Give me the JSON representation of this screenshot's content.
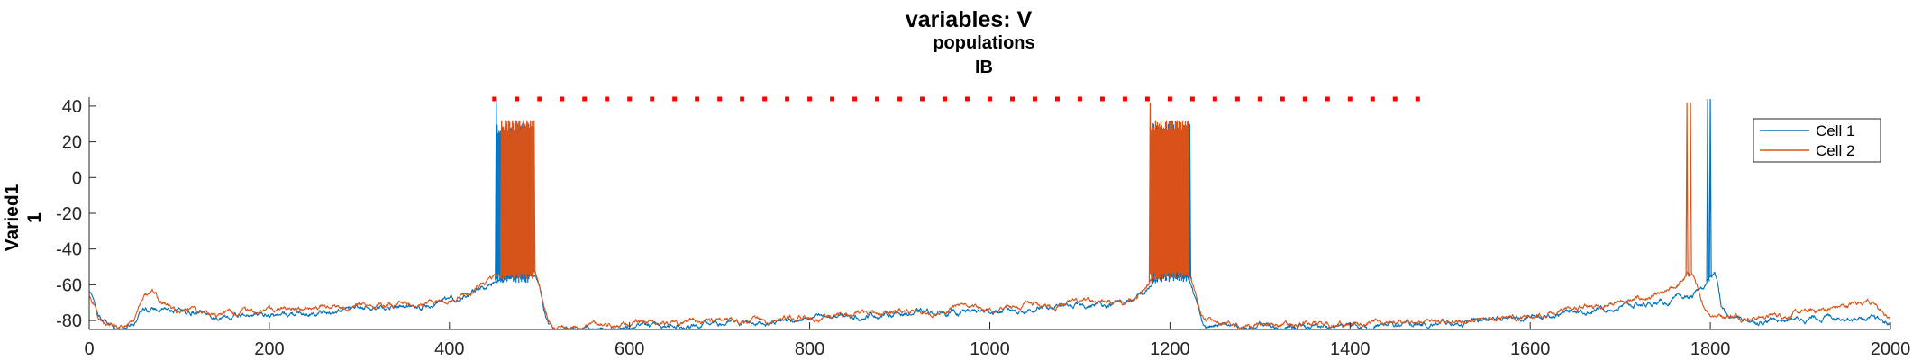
{
  "chart_data": {
    "type": "line",
    "title": "variables: V",
    "subtitle_line1": "populations",
    "subtitle_line2": "IB",
    "ylabel_line1": "Varied1",
    "ylabel_line2": "1",
    "xlabel": "",
    "xlim": [
      0,
      2000
    ],
    "ylim": [
      -85,
      45
    ],
    "xticks": [
      0,
      200,
      400,
      600,
      800,
      1000,
      1200,
      1400,
      1600,
      1800,
      2000
    ],
    "yticks": [
      -80,
      -60,
      -40,
      -20,
      0,
      20,
      40
    ],
    "grid": false,
    "legend_position": "top-right",
    "colors": {
      "cell1": "#0072BD",
      "cell2": "#D95319",
      "stim_marker": "#FF0000",
      "axis": "#262626"
    },
    "stimulus_marker": {
      "y": 44,
      "x_start": 450,
      "x_end": 1485,
      "spacing": 25
    },
    "series": [
      {
        "name": "Cell 1",
        "points": [
          [
            0,
            -64
          ],
          [
            5,
            -68
          ],
          [
            10,
            -78
          ],
          [
            20,
            -82
          ],
          [
            30,
            -84
          ],
          [
            40,
            -84
          ],
          [
            50,
            -81
          ],
          [
            55,
            -76
          ],
          [
            60,
            -72
          ],
          [
            80,
            -74
          ],
          [
            100,
            -75
          ],
          [
            120,
            -76
          ],
          [
            150,
            -78
          ],
          [
            200,
            -77
          ],
          [
            250,
            -76
          ],
          [
            300,
            -74
          ],
          [
            350,
            -72
          ],
          [
            400,
            -70
          ],
          [
            420,
            -66
          ],
          [
            440,
            -62
          ],
          [
            448,
            -58
          ],
          [
            470,
            -55
          ],
          [
            490,
            -54
          ],
          [
            495,
            -55
          ],
          [
            500,
            -62
          ],
          [
            505,
            -74
          ],
          [
            510,
            -80
          ],
          [
            515,
            -83
          ],
          [
            520,
            -85
          ],
          [
            600,
            -84
          ],
          [
            700,
            -82
          ],
          [
            800,
            -79
          ],
          [
            900,
            -76
          ],
          [
            1000,
            -75
          ],
          [
            1100,
            -72
          ],
          [
            1150,
            -70
          ],
          [
            1170,
            -66
          ],
          [
            1180,
            -60
          ],
          [
            1190,
            -56
          ],
          [
            1200,
            -54
          ],
          [
            1220,
            -55
          ],
          [
            1225,
            -60
          ],
          [
            1230,
            -70
          ],
          [
            1235,
            -80
          ],
          [
            1240,
            -83
          ],
          [
            1300,
            -84
          ],
          [
            1400,
            -83
          ],
          [
            1500,
            -82
          ],
          [
            1600,
            -78
          ],
          [
            1700,
            -72
          ],
          [
            1750,
            -70
          ],
          [
            1780,
            -67
          ],
          [
            1790,
            -63
          ],
          [
            1800,
            -56
          ],
          [
            1805,
            -54
          ],
          [
            1808,
            -60
          ],
          [
            1812,
            -72
          ],
          [
            1820,
            -78
          ],
          [
            1850,
            -80
          ],
          [
            1900,
            -79
          ],
          [
            1950,
            -77
          ],
          [
            2000,
            -82
          ]
        ],
        "spikes": {
          "times": [
            452,
            458,
            464,
            470,
            476,
            482,
            488,
            1182,
            1190,
            1198,
            1206,
            1214,
            1222,
            1797,
            1800
          ],
          "peak_times": [
            452,
            1797,
            1800
          ],
          "peak": 44,
          "typical_peak": 30,
          "trough": -55
        }
      },
      {
        "name": "Cell 2",
        "points": [
          [
            0,
            -66
          ],
          [
            5,
            -70
          ],
          [
            10,
            -78
          ],
          [
            20,
            -83
          ],
          [
            30,
            -84
          ],
          [
            40,
            -83
          ],
          [
            50,
            -79
          ],
          [
            55,
            -72
          ],
          [
            60,
            -66
          ],
          [
            70,
            -64
          ],
          [
            80,
            -70
          ],
          [
            100,
            -74
          ],
          [
            150,
            -76
          ],
          [
            200,
            -74
          ],
          [
            250,
            -73
          ],
          [
            300,
            -72
          ],
          [
            350,
            -71
          ],
          [
            400,
            -68
          ],
          [
            420,
            -64
          ],
          [
            440,
            -60
          ],
          [
            455,
            -56
          ],
          [
            475,
            -53
          ],
          [
            490,
            -52
          ],
          [
            495,
            -54
          ],
          [
            500,
            -60
          ],
          [
            505,
            -72
          ],
          [
            510,
            -79
          ],
          [
            515,
            -82
          ],
          [
            520,
            -83
          ],
          [
            600,
            -82
          ],
          [
            700,
            -80
          ],
          [
            800,
            -78
          ],
          [
            900,
            -75
          ],
          [
            1000,
            -73
          ],
          [
            1100,
            -71
          ],
          [
            1150,
            -69
          ],
          [
            1170,
            -64
          ],
          [
            1180,
            -58
          ],
          [
            1190,
            -54
          ],
          [
            1200,
            -52
          ],
          [
            1220,
            -53
          ],
          [
            1225,
            -58
          ],
          [
            1230,
            -68
          ],
          [
            1235,
            -78
          ],
          [
            1240,
            -82
          ],
          [
            1300,
            -82
          ],
          [
            1400,
            -82
          ],
          [
            1500,
            -81
          ],
          [
            1600,
            -77
          ],
          [
            1700,
            -70
          ],
          [
            1750,
            -66
          ],
          [
            1765,
            -60
          ],
          [
            1775,
            -55
          ],
          [
            1780,
            -54
          ],
          [
            1785,
            -60
          ],
          [
            1790,
            -72
          ],
          [
            1800,
            -76
          ],
          [
            1850,
            -78
          ],
          [
            1900,
            -76
          ],
          [
            1950,
            -72
          ],
          [
            1975,
            -68
          ],
          [
            2000,
            -80
          ]
        ],
        "spikes": {
          "times": [
            458,
            462,
            466,
            470,
            474,
            478,
            482,
            486,
            490,
            494,
            1178,
            1184,
            1190,
            1196,
            1202,
            1208,
            1214,
            1220,
            1774,
            1778
          ],
          "peak_times": [
            1178,
            1774,
            1778
          ],
          "peak": 42,
          "typical_peak": 32,
          "trough": -53
        }
      }
    ]
  }
}
